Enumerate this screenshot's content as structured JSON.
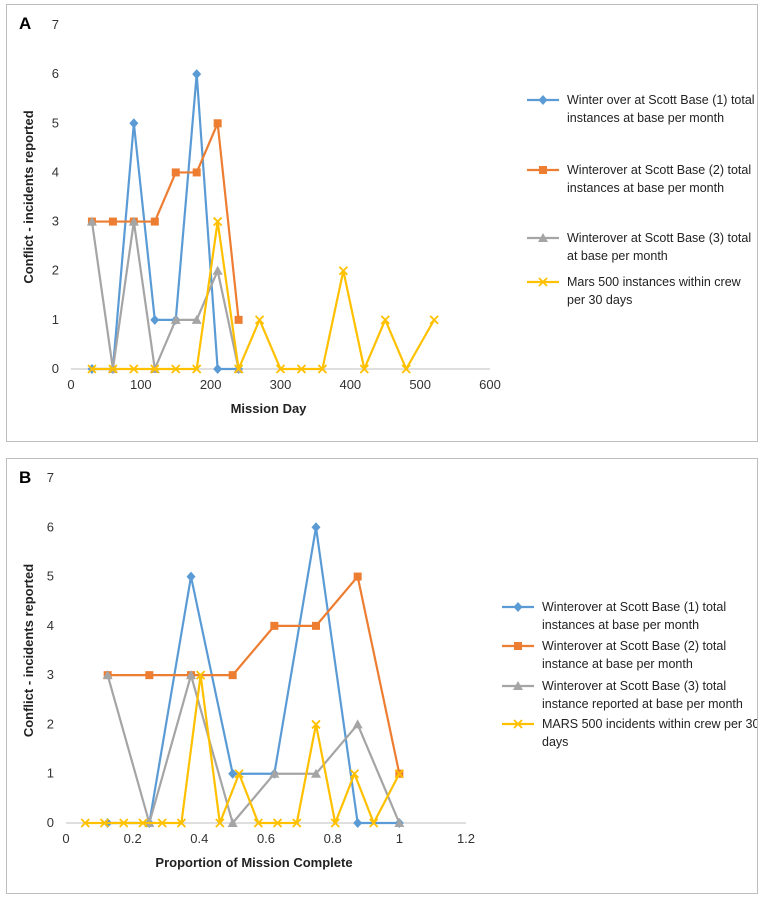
{
  "chart_data": [
    {
      "panel_label": "A",
      "type": "line",
      "xlabel": "Mission Day",
      "ylabel": "Conflict - incidents reported",
      "xlim": [
        0,
        600
      ],
      "ylim": [
        0,
        7
      ],
      "xticks": [
        "0",
        "100",
        "200",
        "300",
        "400",
        "500",
        "600"
      ],
      "yticks": [
        "0",
        "1",
        "2",
        "3",
        "4",
        "5",
        "6",
        "7"
      ],
      "series": [
        {
          "name": "Winter over at Scott Base (1) total instances at base per month",
          "legend_lines": [
            "Winter over at Scott Base (1) total",
            "instances at base per month"
          ],
          "color": "#5B9BD5",
          "marker": "diamond",
          "x": [
            30,
            60,
            90,
            120,
            150,
            180,
            210,
            240
          ],
          "y": [
            0,
            0,
            5,
            1,
            1,
            6,
            0,
            0
          ]
        },
        {
          "name": "Winterover at Scott Base (2) total instances at base per month",
          "legend_lines": [
            "Winterover at Scott Base (2) total",
            "instances at base per month"
          ],
          "color": "#ED7D31",
          "marker": "square",
          "x": [
            30,
            60,
            90,
            120,
            150,
            180,
            210,
            240
          ],
          "y": [
            3,
            3,
            3,
            3,
            4,
            4,
            5,
            1
          ]
        },
        {
          "name": "Winterover at Scott Base (3) total at base per month",
          "legend_lines": [
            "Winterover at Scott Base (3) total",
            "at base per month"
          ],
          "color": "#A5A5A5",
          "marker": "triangle",
          "x": [
            30,
            60,
            90,
            120,
            150,
            180,
            210,
            240
          ],
          "y": [
            3,
            0,
            3,
            0,
            1,
            1,
            2,
            0
          ]
        },
        {
          "name": "Mars 500 instances within crew per 30 days",
          "legend_lines": [
            "Mars 500 instances within crew",
            "per 30 days"
          ],
          "color": "#FFC000",
          "marker": "x",
          "x": [
            30,
            60,
            90,
            120,
            150,
            180,
            210,
            240,
            270,
            300,
            330,
            360,
            390,
            420,
            450,
            480,
            520
          ],
          "y": [
            0,
            0,
            0,
            0,
            0,
            0,
            3,
            0,
            1,
            0,
            0,
            0,
            2,
            0,
            1,
            0,
            1
          ]
        }
      ]
    },
    {
      "panel_label": "B",
      "type": "line",
      "xlabel": "Proportion of Mission Complete",
      "ylabel": "Conflict - incidents reported",
      "xlim": [
        0,
        1.2
      ],
      "ylim": [
        0,
        7
      ],
      "xticks": [
        "0",
        "0.2",
        "0.4",
        "0.6",
        "0.8",
        "1",
        "1.2"
      ],
      "yticks": [
        "0",
        "1",
        "2",
        "3",
        "4",
        "5",
        "6",
        "7"
      ],
      "series": [
        {
          "name": "Winterover at Scott Base (1) total instances at base per month",
          "legend_lines": [
            "Winterover at Scott Base (1) total",
            "instances at base per month"
          ],
          "color": "#5B9BD5",
          "marker": "diamond",
          "x": [
            0.125,
            0.25,
            0.375,
            0.5,
            0.625,
            0.75,
            0.875,
            1.0
          ],
          "y": [
            0,
            0,
            5,
            1,
            1,
            6,
            0,
            0
          ]
        },
        {
          "name": "Winterover at Scott Base (2) total instance at base per month",
          "legend_lines": [
            "Winterover at Scott Base (2) total",
            "instance at base per month"
          ],
          "color": "#ED7D31",
          "marker": "square",
          "x": [
            0.125,
            0.25,
            0.375,
            0.5,
            0.625,
            0.75,
            0.875,
            1.0
          ],
          "y": [
            3,
            3,
            3,
            3,
            4,
            4,
            5,
            1
          ]
        },
        {
          "name": "Winterover at Scott Base (3) total instance reported at base per month",
          "legend_lines": [
            "Winterover at Scott Base (3) total",
            "instance reported at base per month"
          ],
          "color": "#A5A5A5",
          "marker": "triangle",
          "x": [
            0.125,
            0.25,
            0.375,
            0.5,
            0.625,
            0.75,
            0.875,
            1.0
          ],
          "y": [
            3,
            0,
            3,
            0,
            1,
            1,
            2,
            0
          ]
        },
        {
          "name": "MARS 500 incidents within crew per 30 days",
          "legend_lines": [
            "MARS 500 incidents within crew per 30",
            "days"
          ],
          "color": "#FFC000",
          "marker": "x",
          "x": [
            0.0577,
            0.1154,
            0.1731,
            0.2308,
            0.2885,
            0.3462,
            0.4038,
            0.4615,
            0.5192,
            0.5769,
            0.6346,
            0.6923,
            0.75,
            0.8077,
            0.8654,
            0.9231,
            1.0
          ],
          "y": [
            0,
            0,
            0,
            0,
            0,
            0,
            3,
            0,
            1,
            0,
            0,
            0,
            2,
            0,
            1,
            0,
            1
          ]
        }
      ]
    }
  ]
}
